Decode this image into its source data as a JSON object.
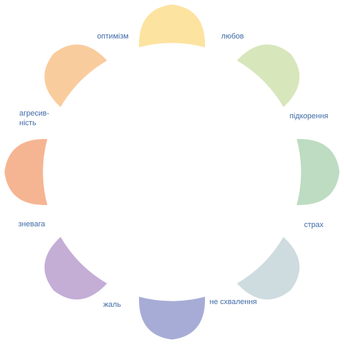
{
  "diagram": {
    "petals": [
      {
        "id": "yellow",
        "color": "#fde3a0"
      },
      {
        "id": "yellow-green",
        "color": "#d8e6bc"
      },
      {
        "id": "green",
        "color": "#bddcc2"
      },
      {
        "id": "blue-grey",
        "color": "#cedcdf"
      },
      {
        "id": "blue",
        "color": "#a7acd6"
      },
      {
        "id": "purple",
        "color": "#c4aed6"
      },
      {
        "id": "red-orange",
        "color": "#f6b592"
      },
      {
        "id": "orange",
        "color": "#f9cc9d"
      }
    ],
    "labels": [
      {
        "id": "optimism",
        "lines": [
          "оптимізм"
        ]
      },
      {
        "id": "love",
        "lines": [
          "любов"
        ]
      },
      {
        "id": "submission",
        "lines": [
          "підкорення"
        ]
      },
      {
        "id": "awe",
        "lines": [
          "страх"
        ]
      },
      {
        "id": "disapproval",
        "lines": [
          "не схвалення"
        ]
      },
      {
        "id": "remorse",
        "lines": [
          "жаль"
        ]
      },
      {
        "id": "contempt",
        "lines": [
          "зневага"
        ]
      },
      {
        "id": "aggressiveness",
        "lines": [
          "агресив-",
          "ність"
        ]
      }
    ]
  }
}
